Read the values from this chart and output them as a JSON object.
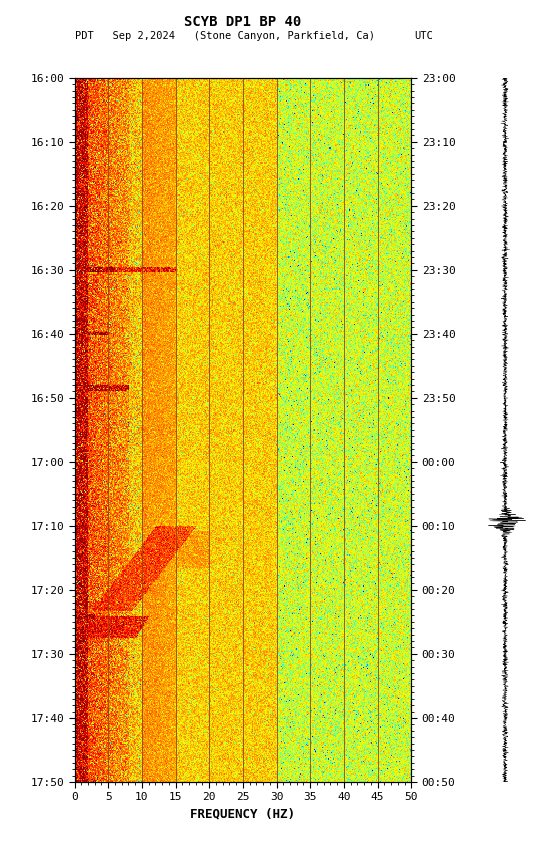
{
  "title_line1": "SCYB DP1 BP 40",
  "title_line2_left": "PDT   Sep 2,2024   (Stone Canyon, Parkfield, Ca)",
  "title_line2_right": "UTC",
  "xlabel": "FREQUENCY (HZ)",
  "freq_min": 0,
  "freq_max": 50,
  "freq_ticks": [
    0,
    5,
    10,
    15,
    20,
    25,
    30,
    35,
    40,
    45,
    50
  ],
  "time_ticks_pdt": [
    "16:00",
    "16:10",
    "16:20",
    "16:30",
    "16:40",
    "16:50",
    "17:00",
    "17:10",
    "17:20",
    "17:30",
    "17:40",
    "17:50"
  ],
  "time_ticks_utc": [
    "23:00",
    "23:10",
    "23:20",
    "23:30",
    "23:40",
    "23:50",
    "00:00",
    "00:10",
    "00:20",
    "00:30",
    "00:40",
    "00:50"
  ],
  "vgrid_freqs": [
    5,
    10,
    15,
    20,
    25,
    30,
    35,
    40,
    45
  ],
  "vgrid_color": "#8B4513",
  "fig_width": 5.52,
  "fig_height": 8.64,
  "colormap": "jet",
  "n_time": 660,
  "n_freq": 500,
  "seed": 42
}
